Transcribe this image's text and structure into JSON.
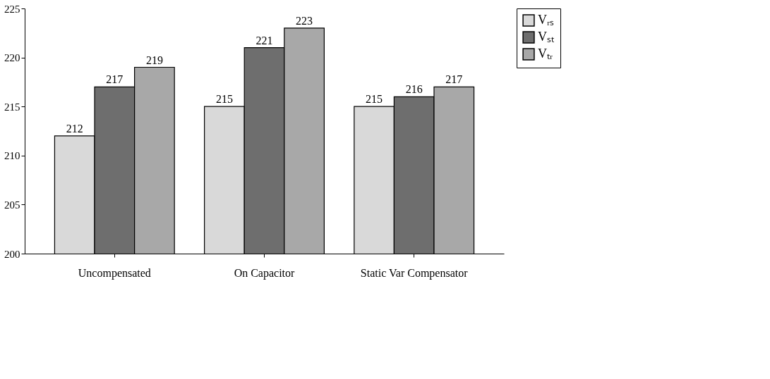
{
  "chart_data": {
    "type": "bar",
    "categories": [
      "Uncompensated",
      "On Capacitor",
      "Static Var Compensator"
    ],
    "series": [
      {
        "name": "Vᵣₛ",
        "color": "#d9d9d9",
        "values": [
          212,
          215,
          215
        ]
      },
      {
        "name": "Vₛₜ",
        "color": "#6e6e6e",
        "values": [
          217,
          221,
          216
        ]
      },
      {
        "name": "Vₜᵣ",
        "color": "#a8a8a8",
        "values": [
          219,
          223,
          217
        ]
      }
    ],
    "ylim": [
      200,
      225
    ],
    "yticks": [
      200,
      205,
      210,
      215,
      220,
      225
    ],
    "data_labels": true,
    "legend": "right",
    "grid": false
  }
}
